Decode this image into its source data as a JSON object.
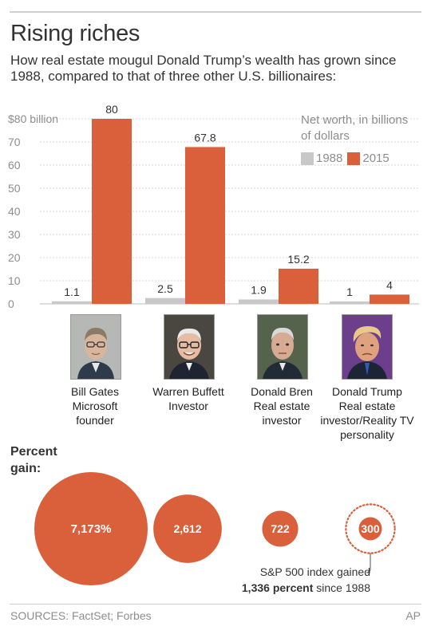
{
  "header": {
    "title": "Rising riches",
    "subtitle": "How real estate mougul Donald Trump’s wealth has grown since 1988, compared to that of three other U.S. billionaires:"
  },
  "legend": {
    "title": "Net worth, in billions of dollars",
    "items": [
      {
        "label": "1988",
        "color": "#c8c8c8"
      },
      {
        "label": "2015",
        "color": "#d9603b"
      }
    ]
  },
  "people": [
    {
      "name": "Bill Gates",
      "role_lines": [
        "Microsoft",
        "founder"
      ],
      "photo_icon": "bill-gates-photo"
    },
    {
      "name": "Warren Buffett",
      "role_lines": [
        "Investor"
      ],
      "photo_icon": "warren-buffett-photo"
    },
    {
      "name": "Donald Bren",
      "role_lines": [
        "Real estate",
        "investor"
      ],
      "photo_icon": "donald-bren-photo"
    },
    {
      "name": "Donald Trump",
      "role_lines": [
        "Real estate",
        "investor/Reality TV",
        "personality"
      ],
      "photo_icon": "donald-trump-photo"
    }
  ],
  "chart_data": {
    "type": "bar",
    "categories": [
      "Bill Gates",
      "Warren Buffett",
      "Donald Bren",
      "Donald Trump"
    ],
    "series": [
      {
        "name": "1988",
        "values": [
          1.1,
          2.5,
          1.9,
          1
        ],
        "labels": [
          "1.1",
          "2.5",
          "1.9",
          "1"
        ],
        "color": "#c8c8c8"
      },
      {
        "name": "2015",
        "values": [
          80,
          67.8,
          15.2,
          4
        ],
        "labels": [
          "80",
          "67.8",
          "15.2",
          "4"
        ],
        "color": "#d9603b"
      }
    ],
    "yticks": [
      0,
      10,
      20,
      30,
      40,
      50,
      60,
      70,
      80
    ],
    "ytick_labels": [
      "0",
      "10",
      "20",
      "30",
      "40",
      "50",
      "60",
      "70",
      "$80 billion"
    ],
    "ylim": [
      0,
      80
    ],
    "grid": true,
    "legend_position": "top-right"
  },
  "percent_gain": {
    "label": "Percent gain:",
    "values": [
      7173,
      2612,
      722,
      300
    ],
    "labels": [
      "7,173%",
      "2,612",
      "722",
      "300"
    ],
    "color": "#d9603b",
    "index_reference_value": 1336
  },
  "sp_note": {
    "line1": "S&P 500 index gained",
    "bold": "1,336 percent",
    "rest": " since 1988"
  },
  "footer": {
    "sources": "SOURCES: FactSet; Forbes",
    "credit": "AP"
  }
}
